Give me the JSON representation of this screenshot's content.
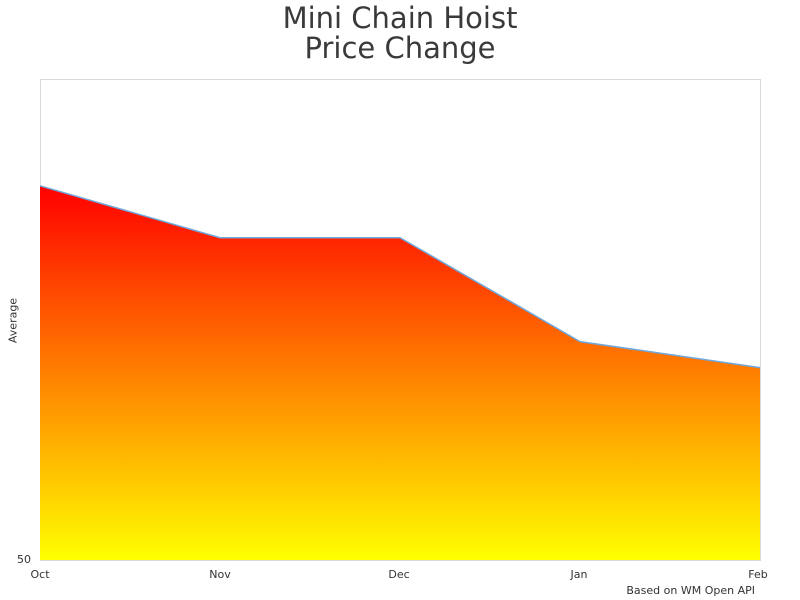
{
  "title": {
    "line1": "Mini Chain Hoist",
    "line2": "Price Change"
  },
  "credit": "Based on WM Open API",
  "colors": {
    "gradient_top": "#ff0000",
    "gradient_bottom": "#ffff00",
    "line": "#6fa8dc",
    "frame": "#d9d9d9"
  },
  "chart_data": {
    "type": "area",
    "title": "Mini Chain Hoist Price Change",
    "xlabel": "",
    "ylabel": "Average",
    "categories": [
      "Oct",
      "Nov",
      "Dec",
      "Jan",
      "Feb"
    ],
    "series": [
      {
        "name": "Average",
        "values": [
          88.9,
          83.5,
          83.5,
          72.7,
          70.0
        ]
      }
    ],
    "y_tick_labels": [
      "50"
    ],
    "ylim": [
      50,
      100
    ],
    "grid": false,
    "legend": "none",
    "annotations": [
      "Based on WM Open API"
    ]
  }
}
